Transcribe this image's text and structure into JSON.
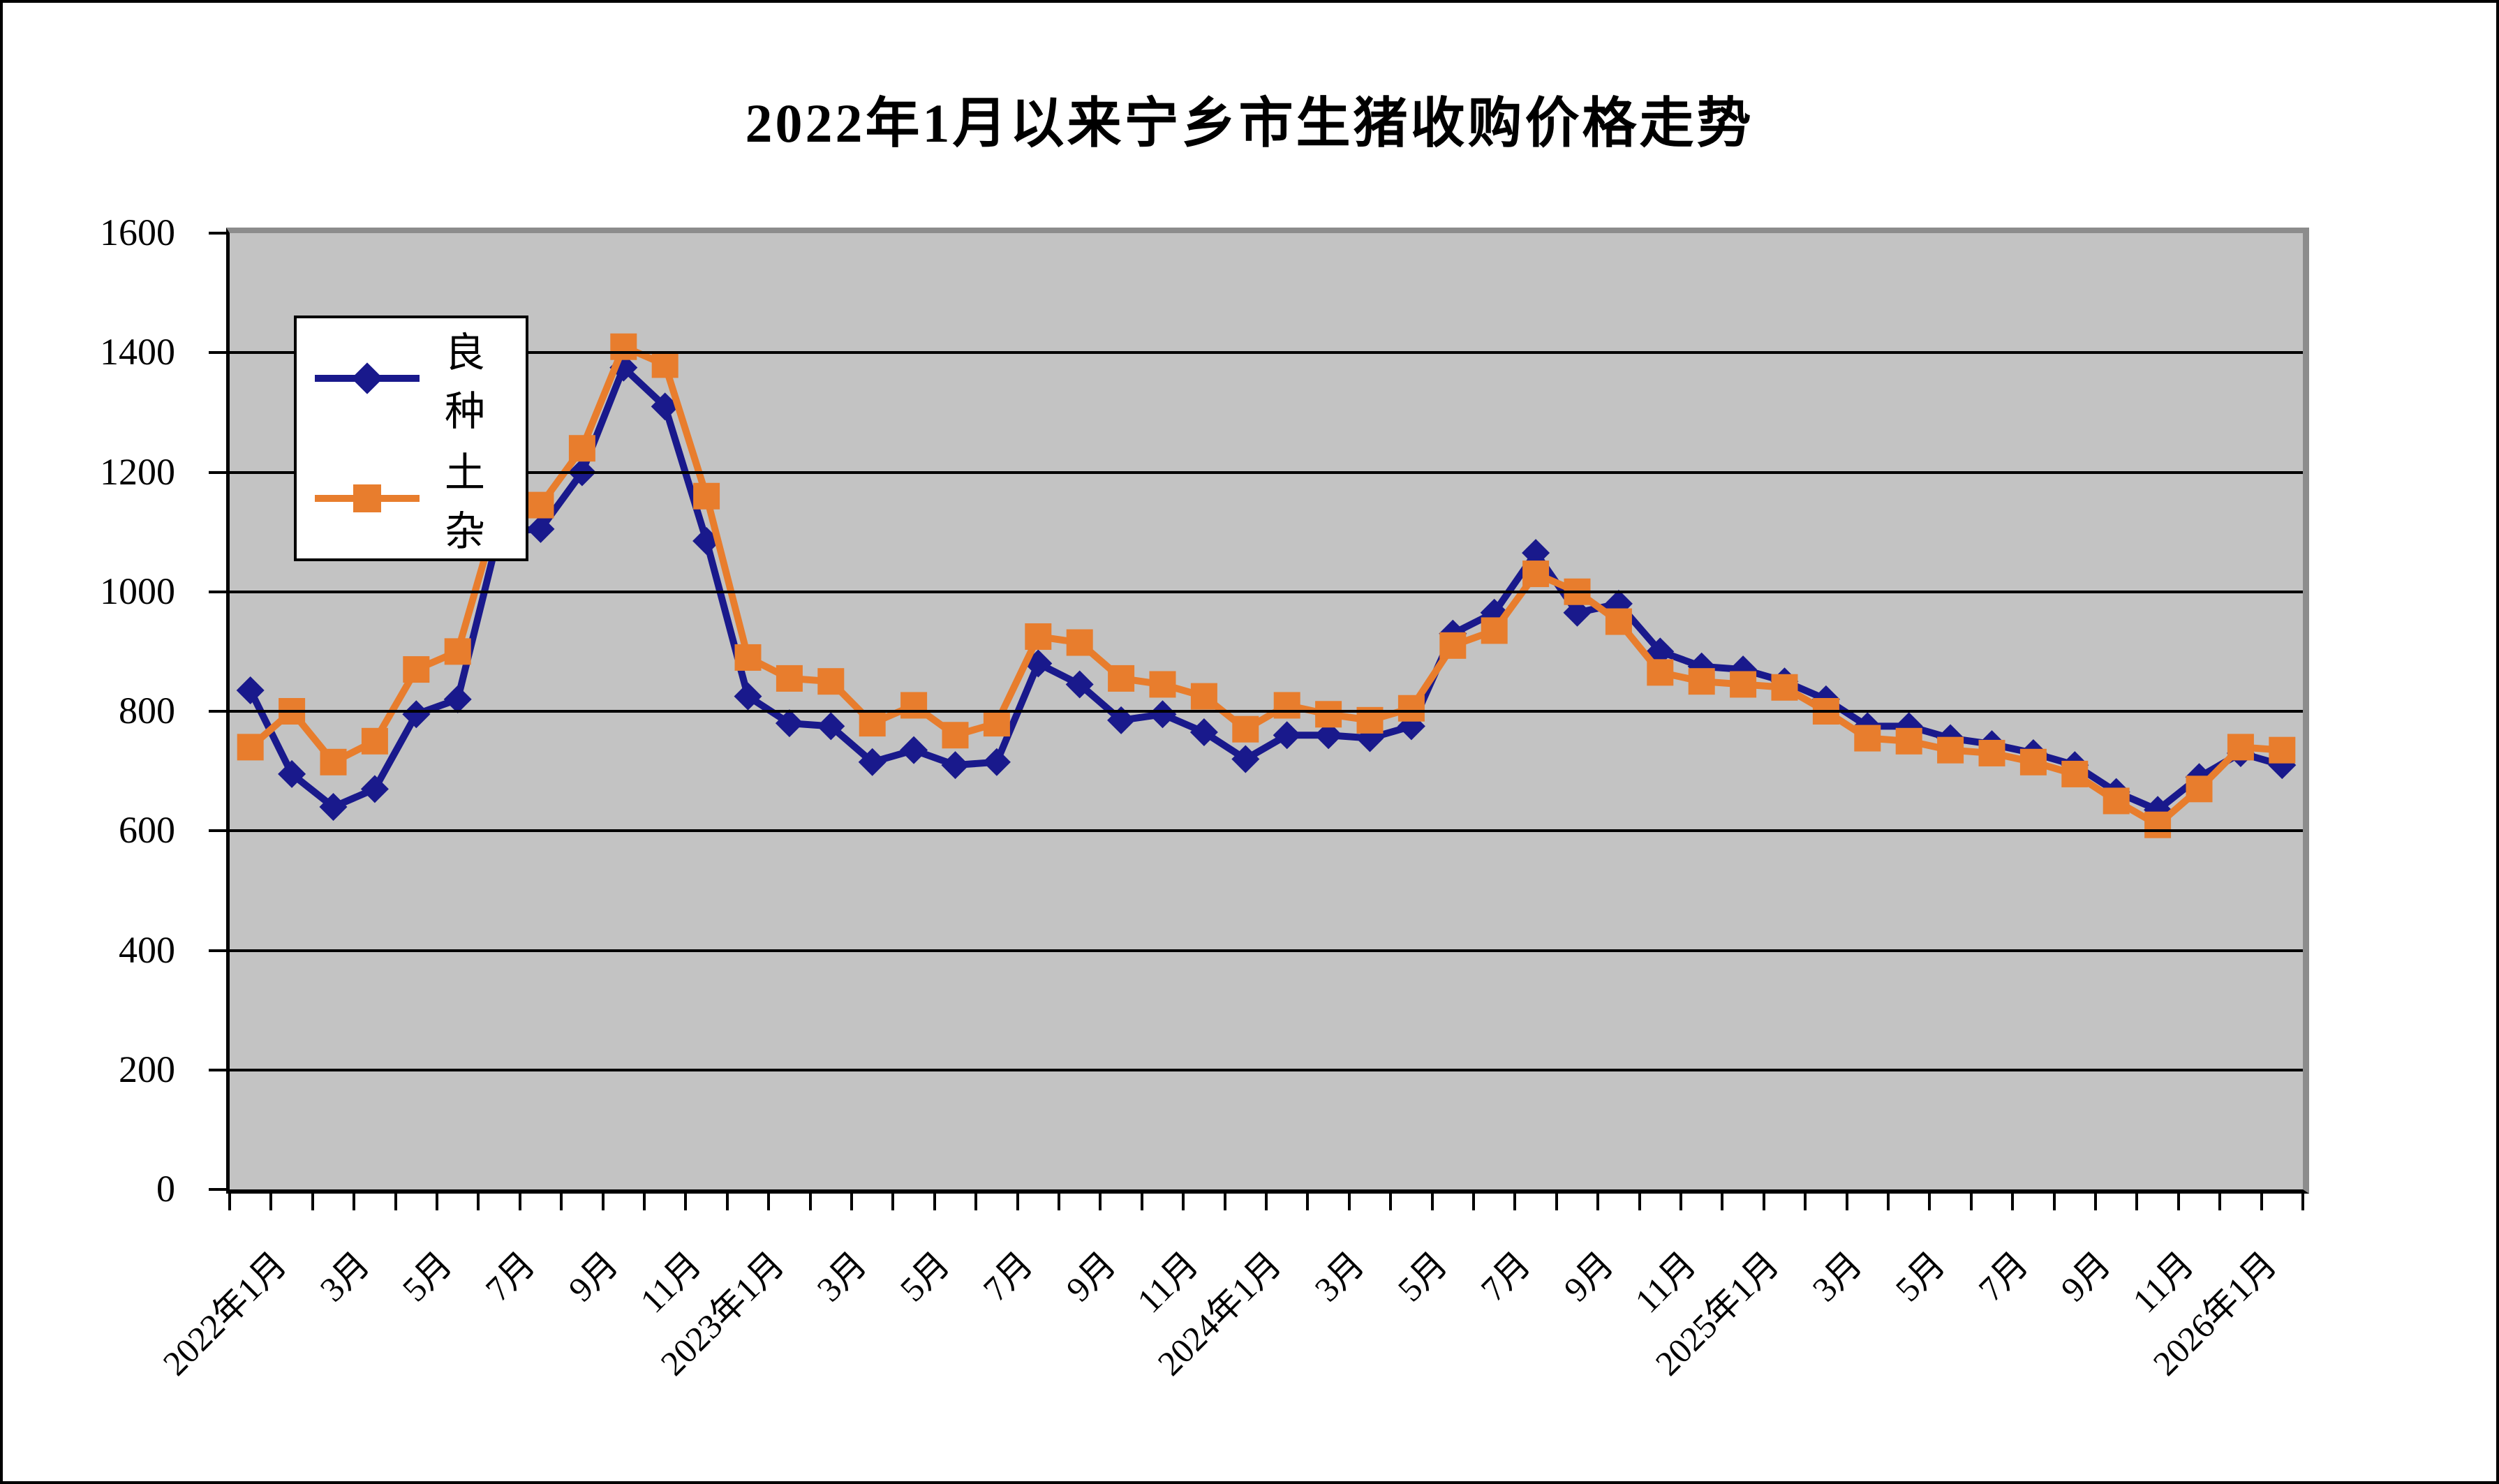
{
  "chart_data": {
    "type": "line",
    "title": "2022年1月以来宁乡市生猪收购价格走势",
    "xlabel": "",
    "ylabel": "",
    "ylim": [
      0,
      1600
    ],
    "ytick_step": 200,
    "grid": true,
    "plot_bg_color": "#C3C3C3",
    "gridline_color": "#000000",
    "legend_position": "inside-top-left",
    "x_axis_tick_labels": [
      "2022年1月",
      "3月",
      "5月",
      "7月",
      "9月",
      "11月",
      "2023年1月",
      "3月",
      "5月",
      "7月",
      "9月",
      "11月",
      "2024年1月",
      "3月",
      "5月",
      "7月",
      "9月",
      "11月",
      "2025年1月",
      "3月",
      "5月",
      "7月",
      "9月",
      "11月",
      "2026年1月"
    ],
    "categories": [
      "2022年1月",
      "2022年2月",
      "2022年3月",
      "2022年4月",
      "2022年5月",
      "2022年6月",
      "2022年7月",
      "2022年8月",
      "2022年9月",
      "2022年10月",
      "2022年11月",
      "2022年12月",
      "2023年1月",
      "2023年2月",
      "2023年3月",
      "2023年4月",
      "2023年5月",
      "2023年6月",
      "2023年7月",
      "2023年8月",
      "2023年9月",
      "2023年10月",
      "2023年11月",
      "2023年12月",
      "2024年1月",
      "2024年2月",
      "2024年3月",
      "2024年4月",
      "2024年5月",
      "2024年6月",
      "2024年7月",
      "2024年8月",
      "2024年9月",
      "2024年10月",
      "2024年11月",
      "2024年12月",
      "2025年1月",
      "2025年2月",
      "2025年3月",
      "2025年4月",
      "2025年5月",
      "2025年6月",
      "2025年7月",
      "2025年8月",
      "2025年9月",
      "2025年10月",
      "2025年11月",
      "2025年12月",
      "2026年1月",
      "2026年2月"
    ],
    "series": [
      {
        "name": "良种",
        "color": "#19198C",
        "marker": "diamond",
        "values": [
          835,
          695,
          640,
          670,
          795,
          820,
          1100,
          1105,
          1200,
          1375,
          1310,
          1085,
          825,
          780,
          775,
          715,
          735,
          710,
          715,
          880,
          845,
          785,
          795,
          765,
          720,
          760,
          760,
          755,
          775,
          930,
          965,
          1065,
          965,
          980,
          900,
          875,
          870,
          850,
          820,
          775,
          775,
          755,
          745,
          730,
          710,
          665,
          635,
          690,
          730,
          710
        ]
      },
      {
        "name": "土杂",
        "color": "#E87D2D",
        "marker": "square",
        "values": [
          740,
          800,
          715,
          750,
          870,
          900,
          1140,
          1145,
          1240,
          1410,
          1380,
          1160,
          890,
          855,
          850,
          780,
          810,
          760,
          780,
          925,
          915,
          855,
          845,
          825,
          770,
          810,
          795,
          785,
          805,
          910,
          935,
          1030,
          1000,
          950,
          865,
          850,
          845,
          840,
          800,
          755,
          750,
          735,
          730,
          715,
          695,
          650,
          610,
          670,
          740,
          735
        ]
      }
    ]
  }
}
